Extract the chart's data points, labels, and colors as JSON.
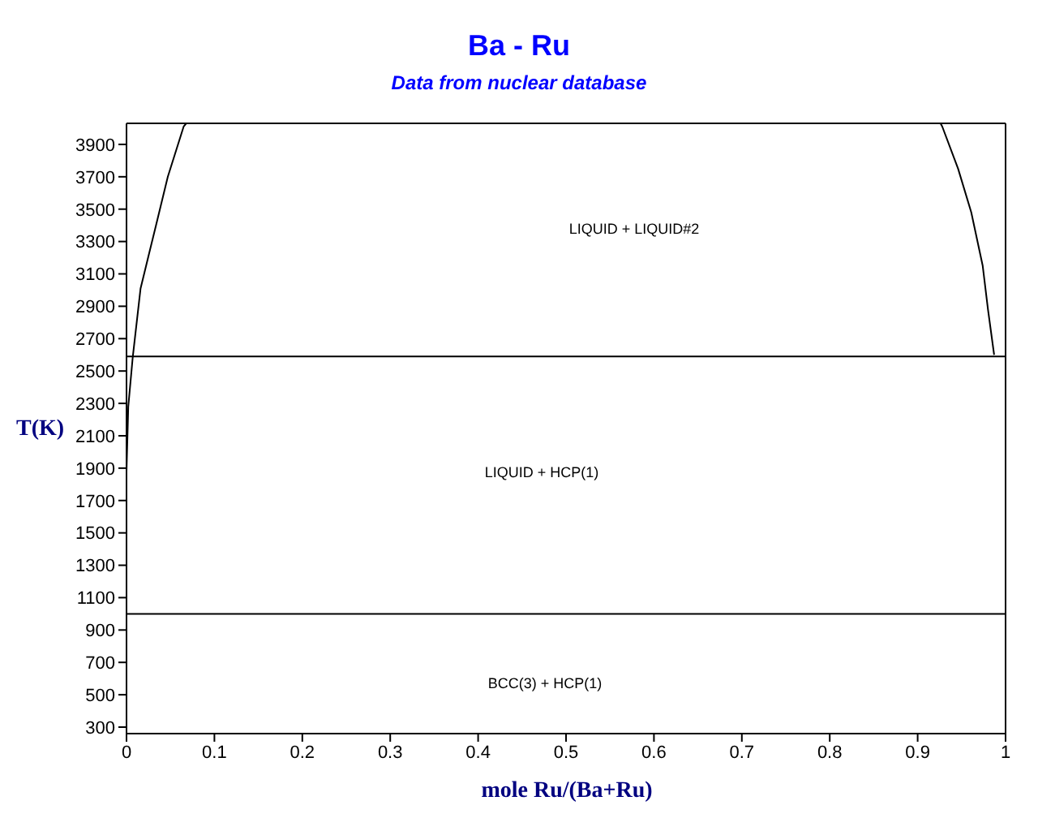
{
  "chart_data": {
    "type": "line",
    "title": "Ba - Ru",
    "subtitle": "Data from nuclear database",
    "xlabel": "mole Ru/(Ba+Ru)",
    "ylabel": "T(K)",
    "xlim": [
      0,
      1
    ],
    "xticks": [
      0,
      {
        "value": 0.1,
        "label": "0.1"
      },
      {
        "value": 0.2,
        "label": "0.2"
      },
      {
        "value": 0.3,
        "label": "0.3"
      },
      {
        "value": 0.4,
        "label": "0.4"
      },
      {
        "value": 0.5,
        "label": "0.5"
      },
      {
        "value": 0.6,
        "label": "0.6"
      },
      {
        "value": 0.7,
        "label": "0.7"
      },
      {
        "value": 0.8,
        "label": "0.8"
      },
      {
        "value": 0.9,
        "label": "0.9"
      },
      1
    ],
    "ylim": [
      260,
      4030
    ],
    "yticks": [
      300,
      500,
      700,
      900,
      1100,
      1300,
      1500,
      1700,
      1900,
      2100,
      2300,
      2500,
      2700,
      2900,
      3100,
      3300,
      3500,
      3700,
      3900
    ],
    "marker": "none",
    "line_style": "solid",
    "series": [
      {
        "color": "#000000",
        "x": [
          0,
          0.002,
          0.007,
          0.016,
          0.025,
          0.034,
          0.047,
          0.065,
          0.068
        ],
        "values": [
          1880,
          2280,
          2580,
          3010,
          3210,
          3410,
          3700,
          4010,
          4030
        ]
      },
      {
        "color": "#000000",
        "x": [
          0.926,
          0.928,
          0.946,
          0.961,
          0.974,
          0.98,
          0.987
        ],
        "values": [
          4030,
          4010,
          3750,
          3480,
          3150,
          2880,
          2600
        ]
      },
      {
        "color": "#000000",
        "x": [
          0,
          0.987,
          1
        ],
        "values": [
          2590,
          2590,
          2590
        ]
      },
      {
        "color": "#000000",
        "x": [
          0,
          1
        ],
        "values": [
          1000,
          1000
        ]
      }
    ],
    "annotations": [
      "LIQUID + LIQUID#2",
      "LIQUID + HCP(1)",
      "BCC(3) + HCP(1)"
    ]
  }
}
